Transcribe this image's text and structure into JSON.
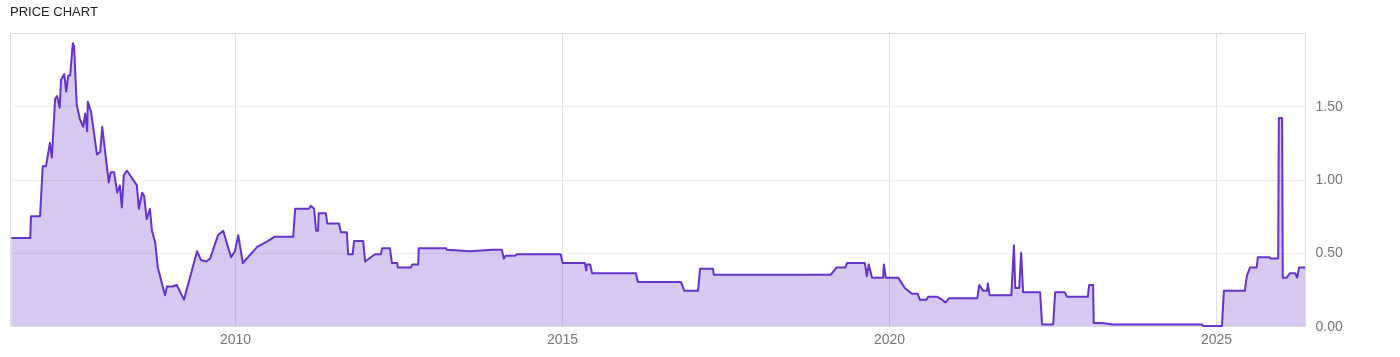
{
  "chart_data": {
    "type": "area",
    "title": "PRICE CHART",
    "x": [
      2006.58,
      2006.87,
      2006.88,
      2007.02,
      2007.06,
      2007.11,
      2007.17,
      2007.2,
      2007.25,
      2007.28,
      2007.32,
      2007.34,
      2007.39,
      2007.42,
      2007.45,
      2007.48,
      2007.52,
      2007.54,
      2007.58,
      2007.63,
      2007.68,
      2007.71,
      2007.74,
      2007.75,
      2007.8,
      2007.89,
      2007.94,
      2007.97,
      2008.07,
      2008.1,
      2008.15,
      2008.2,
      2008.24,
      2008.27,
      2008.3,
      2008.35,
      2008.5,
      2008.53,
      2008.58,
      2008.61,
      2008.65,
      2008.7,
      2008.73,
      2008.78,
      2008.82,
      2008.93,
      2008.96,
      2009.04,
      2009.11,
      2009.22,
      2009.42,
      2009.48,
      2009.56,
      2009.62,
      2009.74,
      2009.82,
      2009.94,
      2010.0,
      2010.05,
      2010.12,
      2010.34,
      2010.5,
      2010.61,
      2010.89,
      2010.92,
      2011.13,
      2011.16,
      2011.21,
      2011.24,
      2011.27,
      2011.28,
      2011.39,
      2011.41,
      2011.59,
      2011.62,
      2011.71,
      2011.73,
      2011.8,
      2011.82,
      2011.96,
      2011.99,
      2012.14,
      2012.23,
      2012.25,
      2012.37,
      2012.4,
      2012.48,
      2012.49,
      2012.69,
      2012.71,
      2012.8,
      2012.81,
      2013.23,
      2013.24,
      2013.59,
      2013.94,
      2014.08,
      2014.11,
      2014.14,
      2014.28,
      2014.31,
      2014.98,
      2015.01,
      2015.35,
      2015.37,
      2015.38,
      2015.43,
      2015.46,
      2016.13,
      2016.16,
      2016.82,
      2016.87,
      2017.08,
      2017.11,
      2017.31,
      2017.32,
      2019.11,
      2019.2,
      2019.33,
      2019.36,
      2019.63,
      2019.66,
      2019.69,
      2019.74,
      2019.91,
      2019.92,
      2019.95,
      2020.14,
      2020.24,
      2020.35,
      2020.44,
      2020.47,
      2020.57,
      2020.6,
      2020.73,
      2020.81,
      2020.86,
      2020.92,
      2021.35,
      2021.38,
      2021.44,
      2021.5,
      2021.51,
      2021.54,
      2021.87,
      2021.91,
      2021.93,
      2021.99,
      2022.02,
      2022.05,
      2022.31,
      2022.34,
      2022.51,
      2022.54,
      2022.69,
      2022.72,
      2023.04,
      2023.06,
      2023.12,
      2023.13,
      2023.26,
      2023.42,
      2024.79,
      2024.8,
      2025.09,
      2025.12,
      2025.44,
      2025.47,
      2025.52,
      2025.62,
      2025.64,
      2025.81,
      2025.84,
      2025.95,
      2025.96,
      2026.01,
      2026.02,
      2026.08,
      2026.13,
      2026.21,
      2026.24,
      2026.27,
      2026.36
    ],
    "series": [
      {
        "color": "#6633cc",
        "values": [
          0.6,
          0.6,
          0.75,
          0.75,
          1.09,
          1.09,
          1.25,
          1.15,
          1.55,
          1.57,
          1.49,
          1.68,
          1.72,
          1.6,
          1.71,
          1.71,
          1.93,
          1.91,
          1.51,
          1.41,
          1.36,
          1.45,
          1.33,
          1.53,
          1.46,
          1.17,
          1.19,
          1.36,
          0.98,
          1.05,
          1.05,
          0.91,
          0.96,
          0.81,
          1.03,
          1.06,
          0.96,
          0.8,
          0.91,
          0.89,
          0.73,
          0.8,
          0.65,
          0.57,
          0.4,
          0.21,
          0.27,
          0.27,
          0.28,
          0.18,
          0.51,
          0.45,
          0.44,
          0.46,
          0.62,
          0.65,
          0.47,
          0.51,
          0.62,
          0.43,
          0.54,
          0.58,
          0.61,
          0.61,
          0.8,
          0.8,
          0.82,
          0.8,
          0.65,
          0.65,
          0.77,
          0.77,
          0.7,
          0.7,
          0.64,
          0.64,
          0.49,
          0.49,
          0.58,
          0.58,
          0.44,
          0.49,
          0.49,
          0.53,
          0.53,
          0.43,
          0.43,
          0.4,
          0.4,
          0.42,
          0.42,
          0.53,
          0.53,
          0.52,
          0.51,
          0.52,
          0.52,
          0.46,
          0.48,
          0.48,
          0.49,
          0.49,
          0.43,
          0.43,
          0.38,
          0.42,
          0.42,
          0.36,
          0.36,
          0.3,
          0.3,
          0.24,
          0.24,
          0.39,
          0.39,
          0.35,
          0.35,
          0.4,
          0.4,
          0.43,
          0.43,
          0.34,
          0.42,
          0.33,
          0.33,
          0.42,
          0.33,
          0.33,
          0.26,
          0.22,
          0.22,
          0.18,
          0.18,
          0.2,
          0.2,
          0.18,
          0.16,
          0.19,
          0.19,
          0.28,
          0.24,
          0.24,
          0.29,
          0.21,
          0.21,
          0.55,
          0.26,
          0.26,
          0.5,
          0.23,
          0.23,
          0.01,
          0.01,
          0.23,
          0.23,
          0.2,
          0.2,
          0.28,
          0.28,
          0.02,
          0.02,
          0.01,
          0.01,
          0.0,
          0.0,
          0.24,
          0.24,
          0.34,
          0.4,
          0.4,
          0.47,
          0.47,
          0.46,
          0.46,
          1.42,
          1.42,
          0.33,
          0.33,
          0.36,
          0.36,
          0.33,
          0.4,
          0.4
        ]
      }
    ],
    "xlim": [
      2006.56,
      2026.36
    ],
    "xticks": [
      2010,
      2015,
      2020,
      2025
    ],
    "ylim": [
      0,
      2.0
    ],
    "yticks": [
      {
        "value": 0,
        "label": "0.00"
      },
      {
        "value": 0.5,
        "label": "0.50"
      },
      {
        "value": 1,
        "label": "1.00"
      },
      {
        "value": 1.5,
        "label": "1.50"
      }
    ],
    "grid": true
  }
}
